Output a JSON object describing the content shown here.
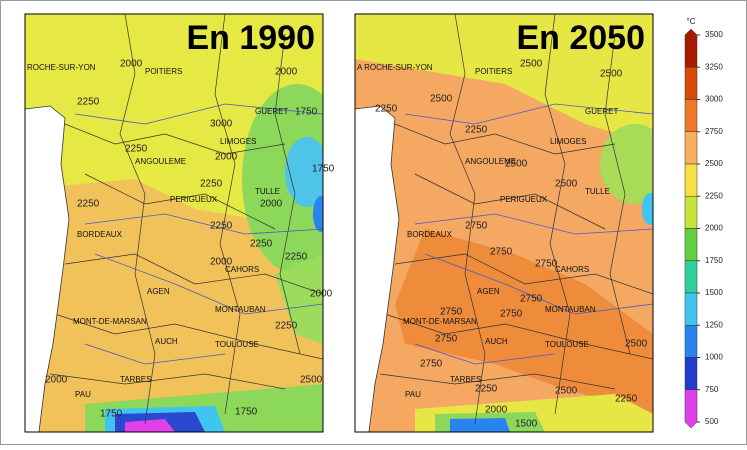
{
  "panels": [
    {
      "title": "En 1990",
      "cities": [
        "ROCHE-SUR-YON",
        "POITIERS",
        "GUERET",
        "LIMOGES",
        "ANGOULEME",
        "TULLE",
        "PERIGUEUX",
        "BORDEAUX",
        "CAHORS",
        "AGEN",
        "MONT-DE-MARSAN",
        "MONTAUBAN",
        "AUCH",
        "TOULOUSE",
        "PAU",
        "TARBES"
      ],
      "contours": [
        2000,
        2250,
        2000,
        3000,
        1750,
        2250,
        2000,
        1750,
        2250,
        2250,
        2000,
        2250,
        2250,
        2000,
        2250,
        2000,
        2250,
        2000,
        2500,
        1750,
        1750
      ]
    },
    {
      "title": "En 2050",
      "cities": [
        "A ROCHE-SUR-YON",
        "POITIERS",
        "GUERET",
        "LIMOGES",
        "ANGOULEME",
        "TULLE",
        "PERIGUEUX",
        "BORDEAUX",
        "CAHORS",
        "AGEN",
        "MONT-DE-MARSAN",
        "MONTAUBAN",
        "AUCH",
        "TOULOUSE",
        "PAU",
        "TARBES"
      ],
      "contours": [
        2500,
        2250,
        2500,
        2500,
        2250,
        2500,
        2500,
        2750,
        2750,
        2750,
        2750,
        2750,
        2750,
        2750,
        2750,
        2500,
        2250,
        2500,
        2250,
        2000,
        1500
      ]
    }
  ],
  "colorbar": {
    "unit": "°C",
    "ticks": [
      3500,
      3250,
      3000,
      2750,
      2500,
      2250,
      2000,
      1750,
      1500,
      1250,
      1000,
      750,
      500
    ],
    "colors": [
      "#a81a00",
      "#d84a08",
      "#f07828",
      "#f8b060",
      "#f8e040",
      "#c8e438",
      "#60d040",
      "#30d09c",
      "#40c4f0",
      "#2a84f0",
      "#1f3ccc",
      "#e040e8"
    ]
  }
}
